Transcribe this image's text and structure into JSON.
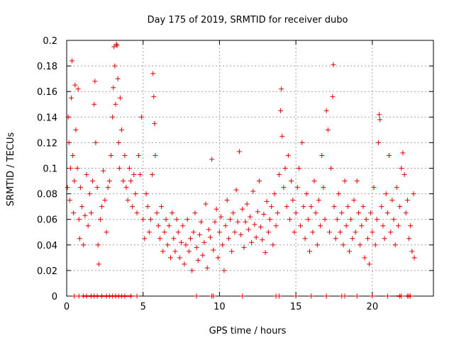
{
  "chart_data": {
    "type": "scatter",
    "title": "Day 175 of 2019, SRMTID for receiver dubo",
    "xlabel": "GPS time / hours",
    "ylabel": "SRMTID / TECUs",
    "xlim": [
      0,
      24
    ],
    "ylim": [
      0,
      0.2
    ],
    "x_ticks": [
      0,
      5,
      10,
      15,
      20
    ],
    "x_tick_labels": [
      "0",
      "5",
      "10",
      "15",
      "20"
    ],
    "y_ticks": [
      0,
      0.02,
      0.04,
      0.06,
      0.08,
      0.1,
      0.12,
      0.14,
      0.16,
      0.18,
      0.2
    ],
    "y_tick_labels": [
      "0",
      "0.02",
      "0.04",
      "0.06",
      "0.08",
      "0.1",
      "0.12",
      "0.14",
      "0.16",
      "0.18",
      "0.2"
    ],
    "grid": true,
    "marker": "plus",
    "color": "#e00000",
    "series": [
      {
        "name": "SRMTID",
        "points": [
          [
            0.05,
            0.085
          ],
          [
            0.1,
            0.14
          ],
          [
            0.15,
            0.12
          ],
          [
            0.2,
            0.075
          ],
          [
            0.25,
            0.1
          ],
          [
            0.3,
            0.155
          ],
          [
            0.35,
            0.184
          ],
          [
            0.4,
            0.11
          ],
          [
            0.45,
            0.065
          ],
          [
            0.5,
            0.09
          ],
          [
            0.55,
            0.165
          ],
          [
            0.6,
            0.13
          ],
          [
            0.7,
            0.1
          ],
          [
            0.75,
            0.162
          ],
          [
            0.8,
            0.06
          ],
          [
            0.85,
            0.045
          ],
          [
            0.9,
            0.085
          ],
          [
            1.0,
            0.07
          ],
          [
            1.1,
            0.04
          ],
          [
            1.2,
            0.063
          ],
          [
            1.3,
            0.095
          ],
          [
            1.4,
            0.055
          ],
          [
            1.5,
            0.08
          ],
          [
            1.6,
            0.065
          ],
          [
            1.7,
            0.09
          ],
          [
            1.8,
            0.15
          ],
          [
            1.85,
            0.168
          ],
          [
            1.9,
            0.12
          ],
          [
            2.0,
            0.085
          ],
          [
            2.05,
            0.04
          ],
          [
            2.1,
            0.025
          ],
          [
            2.2,
            0.06
          ],
          [
            2.3,
            0.07
          ],
          [
            2.4,
            0.098
          ],
          [
            2.5,
            0.075
          ],
          [
            2.6,
            0.05
          ],
          [
            2.7,
            0.085
          ],
          [
            2.8,
            0.09
          ],
          [
            2.9,
            0.11
          ],
          [
            3.0,
            0.14
          ],
          [
            3.05,
            0.163
          ],
          [
            3.1,
            0.195
          ],
          [
            3.15,
            0.18
          ],
          [
            3.2,
            0.15
          ],
          [
            3.25,
            0.197
          ],
          [
            3.3,
            0.196
          ],
          [
            3.35,
            0.17
          ],
          [
            3.4,
            0.12
          ],
          [
            3.45,
            0.1
          ],
          [
            3.5,
            0.155
          ],
          [
            3.6,
            0.13
          ],
          [
            3.7,
            0.09
          ],
          [
            3.8,
            0.11
          ],
          [
            3.9,
            0.085
          ],
          [
            4.0,
            0.075
          ],
          [
            4.1,
            0.1
          ],
          [
            4.2,
            0.09
          ],
          [
            4.3,
            0.07
          ],
          [
            4.4,
            0.095
          ],
          [
            4.5,
            0.08
          ],
          [
            4.6,
            0.065
          ],
          [
            4.7,
            0.11
          ],
          [
            4.8,
            0.095
          ],
          [
            4.9,
            0.14
          ],
          [
            5.0,
            0.06
          ],
          [
            5.1,
            0.045
          ],
          [
            5.2,
            0.08
          ],
          [
            5.3,
            0.07
          ],
          [
            5.4,
            0.05
          ],
          [
            5.5,
            0.06
          ],
          [
            5.6,
            0.095
          ],
          [
            5.65,
            0.174
          ],
          [
            5.7,
            0.156
          ],
          [
            5.75,
            0.135
          ],
          [
            5.8,
            0.11
          ],
          [
            5.9,
            0.065
          ],
          [
            6.0,
            0.055
          ],
          [
            6.1,
            0.045
          ],
          [
            6.2,
            0.07
          ],
          [
            6.3,
            0.035
          ],
          [
            6.4,
            0.05
          ],
          [
            6.5,
            0.06
          ],
          [
            6.6,
            0.04
          ],
          [
            6.7,
            0.055
          ],
          [
            6.8,
            0.03
          ],
          [
            6.9,
            0.065
          ],
          [
            7.0,
            0.045
          ],
          [
            7.1,
            0.035
          ],
          [
            7.2,
            0.06
          ],
          [
            7.3,
            0.05
          ],
          [
            7.4,
            0.03
          ],
          [
            7.5,
            0.042
          ],
          [
            7.6,
            0.055
          ],
          [
            7.7,
            0.025
          ],
          [
            7.8,
            0.04
          ],
          [
            7.9,
            0.06
          ],
          [
            8.0,
            0.035
          ],
          [
            8.1,
            0.045
          ],
          [
            8.2,
            0.02
          ],
          [
            8.3,
            0.05
          ],
          [
            8.4,
            0.065
          ],
          [
            8.5,
            0.038
          ],
          [
            8.6,
            0.028
          ],
          [
            8.7,
            0.048
          ],
          [
            8.8,
            0.058
          ],
          [
            8.9,
            0.032
          ],
          [
            9.0,
            0.042
          ],
          [
            9.1,
            0.072
          ],
          [
            9.2,
            0.022
          ],
          [
            9.3,
            0.052
          ],
          [
            9.4,
            0.046
          ],
          [
            9.5,
            0.107
          ],
          [
            9.6,
            0.036
          ],
          [
            9.7,
            0.058
          ],
          [
            9.8,
            0.068
          ],
          [
            9.9,
            0.03
          ],
          [
            10.0,
            0.05
          ],
          [
            10.1,
            0.062
          ],
          [
            10.2,
            0.04
          ],
          [
            10.3,
            0.02
          ],
          [
            10.4,
            0.055
          ],
          [
            10.5,
            0.075
          ],
          [
            10.6,
            0.045
          ],
          [
            10.7,
            0.06
          ],
          [
            10.8,
            0.035
          ],
          [
            10.9,
            0.065
          ],
          [
            11.0,
            0.05
          ],
          [
            11.1,
            0.083
          ],
          [
            11.2,
            0.058
          ],
          [
            11.3,
            0.113
          ],
          [
            11.4,
            0.048
          ],
          [
            11.5,
            0.068
          ],
          [
            11.6,
            0.038
          ],
          [
            11.7,
            0.058
          ],
          [
            11.8,
            0.072
          ],
          [
            11.9,
            0.052
          ],
          [
            12.0,
            0.062
          ],
          [
            12.1,
            0.042
          ],
          [
            12.2,
            0.082
          ],
          [
            12.3,
            0.056
          ],
          [
            12.4,
            0.046
          ],
          [
            12.5,
            0.066
          ],
          [
            12.6,
            0.09
          ],
          [
            12.7,
            0.054
          ],
          [
            12.8,
            0.044
          ],
          [
            12.9,
            0.064
          ],
          [
            13.0,
            0.034
          ],
          [
            13.1,
            0.074
          ],
          [
            13.2,
            0.05
          ],
          [
            13.3,
            0.06
          ],
          [
            13.4,
            0.07
          ],
          [
            13.5,
            0.04
          ],
          [
            13.6,
            0.08
          ],
          [
            13.7,
            0.055
          ],
          [
            13.8,
            0.065
          ],
          [
            13.9,
            0.095
          ],
          [
            14.0,
            0.145
          ],
          [
            14.05,
            0.162
          ],
          [
            14.1,
            0.125
          ],
          [
            14.2,
            0.085
          ],
          [
            14.3,
            0.1
          ],
          [
            14.4,
            0.07
          ],
          [
            14.5,
            0.11
          ],
          [
            14.6,
            0.06
          ],
          [
            14.7,
            0.09
          ],
          [
            14.8,
            0.075
          ],
          [
            14.9,
            0.05
          ],
          [
            15.0,
            0.065
          ],
          [
            15.1,
            0.085
          ],
          [
            15.2,
            0.1
          ],
          [
            15.3,
            0.055
          ],
          [
            15.4,
            0.12
          ],
          [
            15.5,
            0.07
          ],
          [
            15.6,
            0.045
          ],
          [
            15.7,
            0.08
          ],
          [
            15.8,
            0.06
          ],
          [
            15.9,
            0.035
          ],
          [
            16.0,
            0.07
          ],
          [
            16.1,
            0.05
          ],
          [
            16.2,
            0.09
          ],
          [
            16.3,
            0.065
          ],
          [
            16.4,
            0.04
          ],
          [
            16.5,
            0.075
          ],
          [
            16.6,
            0.055
          ],
          [
            16.7,
            0.11
          ],
          [
            16.8,
            0.085
          ],
          [
            16.9,
            0.06
          ],
          [
            17.0,
            0.145
          ],
          [
            17.1,
            0.13
          ],
          [
            17.2,
            0.05
          ],
          [
            17.3,
            0.1
          ],
          [
            17.4,
            0.156
          ],
          [
            17.45,
            0.181
          ],
          [
            17.5,
            0.07
          ],
          [
            17.6,
            0.045
          ],
          [
            17.7,
            0.06
          ],
          [
            17.8,
            0.08
          ],
          [
            17.9,
            0.05
          ],
          [
            18.0,
            0.065
          ],
          [
            18.1,
            0.04
          ],
          [
            18.2,
            0.09
          ],
          [
            18.3,
            0.055
          ],
          [
            18.4,
            0.07
          ],
          [
            18.5,
            0.035
          ],
          [
            18.6,
            0.06
          ],
          [
            18.7,
            0.045
          ],
          [
            18.8,
            0.075
          ],
          [
            18.9,
            0.05
          ],
          [
            19.0,
            0.09
          ],
          [
            19.1,
            0.065
          ],
          [
            19.2,
            0.04
          ],
          [
            19.3,
            0.055
          ],
          [
            19.4,
            0.07
          ],
          [
            19.5,
            0.03
          ],
          [
            19.6,
            0.06
          ],
          [
            19.7,
            0.045
          ],
          [
            19.8,
            0.025
          ],
          [
            19.9,
            0.065
          ],
          [
            20.0,
            0.05
          ],
          [
            20.1,
            0.085
          ],
          [
            20.2,
            0.04
          ],
          [
            20.3,
            0.06
          ],
          [
            20.4,
            0.12
          ],
          [
            20.45,
            0.142
          ],
          [
            20.5,
            0.138
          ],
          [
            20.6,
            0.07
          ],
          [
            20.7,
            0.055
          ],
          [
            20.8,
            0.045
          ],
          [
            20.9,
            0.08
          ],
          [
            21.0,
            0.065
          ],
          [
            21.1,
            0.11
          ],
          [
            21.2,
            0.05
          ],
          [
            21.3,
            0.075
          ],
          [
            21.4,
            0.06
          ],
          [
            21.5,
            0.04
          ],
          [
            21.6,
            0.085
          ],
          [
            21.7,
            0.055
          ],
          [
            21.8,
            0.07
          ],
          [
            21.9,
            0.1
          ],
          [
            22.0,
            0.112
          ],
          [
            22.1,
            0.095
          ],
          [
            22.2,
            0.065
          ],
          [
            22.3,
            0.075
          ],
          [
            22.4,
            0.045
          ],
          [
            22.5,
            0.055
          ],
          [
            22.6,
            0.035
          ],
          [
            22.7,
            0.08
          ],
          [
            22.75,
            0.03
          ]
        ]
      }
    ],
    "zero_markers_x": [
      0.5,
      0.8,
      1.1,
      1.3,
      1.6,
      1.8,
      2.0,
      2.3,
      2.6,
      2.8,
      3.0,
      3.2,
      3.4,
      3.6,
      3.8,
      4.2,
      4.6,
      8.5,
      9.5,
      9.6,
      11.5,
      13.7,
      13.9,
      15.0,
      16.0,
      17.0,
      18.0,
      18.2,
      19.0,
      20.0,
      21.0,
      21.8,
      21.9,
      22.3,
      22.4,
      22.5
    ],
    "zero_marker_ranges": [
      [
        1.0,
        4.3
      ],
      [
        21.6,
        21.9
      ],
      [
        22.2,
        22.5
      ]
    ]
  }
}
